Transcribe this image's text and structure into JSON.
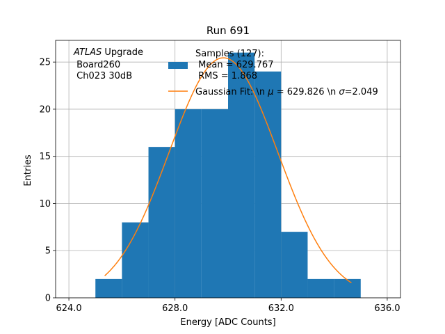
{
  "chart_data": {
    "type": "bar",
    "title": "Run 691",
    "xlabel": "Energy [ADC Counts]",
    "ylabel": "Entries",
    "xlim": [
      623.5,
      636.5
    ],
    "ylim": [
      0,
      27.3
    ],
    "x_ticks": [
      624,
      628,
      632,
      636
    ],
    "x_tick_labels": [
      "624.0",
      "628.0",
      "632.0",
      "636.0"
    ],
    "y_ticks": [
      0,
      5,
      10,
      15,
      20,
      25
    ],
    "y_tick_labels": [
      "0",
      "5",
      "10",
      "15",
      "20",
      "25"
    ],
    "grid": true,
    "histogram": {
      "name": "Samples (127):",
      "color": "#1f77b4",
      "bins": [
        {
          "x0": 625,
          "x1": 626,
          "count": 2
        },
        {
          "x0": 626,
          "x1": 627,
          "count": 8
        },
        {
          "x0": 627,
          "x1": 628,
          "count": 16
        },
        {
          "x0": 628,
          "x1": 629,
          "count": 20
        },
        {
          "x0": 629,
          "x1": 630,
          "count": 20
        },
        {
          "x0": 630,
          "x1": 631,
          "count": 26
        },
        {
          "x0": 631,
          "x1": 632,
          "count": 24
        },
        {
          "x0": 632,
          "x1": 633,
          "count": 7
        },
        {
          "x0": 633,
          "x1": 634,
          "count": 2
        },
        {
          "x0": 634,
          "x1": 635,
          "count": 2
        }
      ]
    },
    "fit": {
      "color": "#ff7f0e",
      "mu": 629.826,
      "sigma": 2.049,
      "amplitude": 25.45,
      "x_range": [
        625.35,
        634.65
      ]
    },
    "annotation": {
      "italic": "ATLAS",
      "line1_rest": " Upgrade",
      "line2": " Board260",
      "line3": " Ch023 30dB"
    },
    "legend": {
      "placement": "top-right",
      "hist_label_line1": "Samples (127):",
      "hist_label_line2": " Mean = 629.767",
      "hist_label_line3": " RMS = 1.868",
      "fit_label_prefix": "Gaussian Fit: \\n ",
      "fit_label_mu_symbol": "μ",
      "fit_label_mid": " = 629.826 \\n ",
      "fit_label_sigma_symbol": "σ",
      "fit_label_suffix": "=2.049"
    }
  }
}
